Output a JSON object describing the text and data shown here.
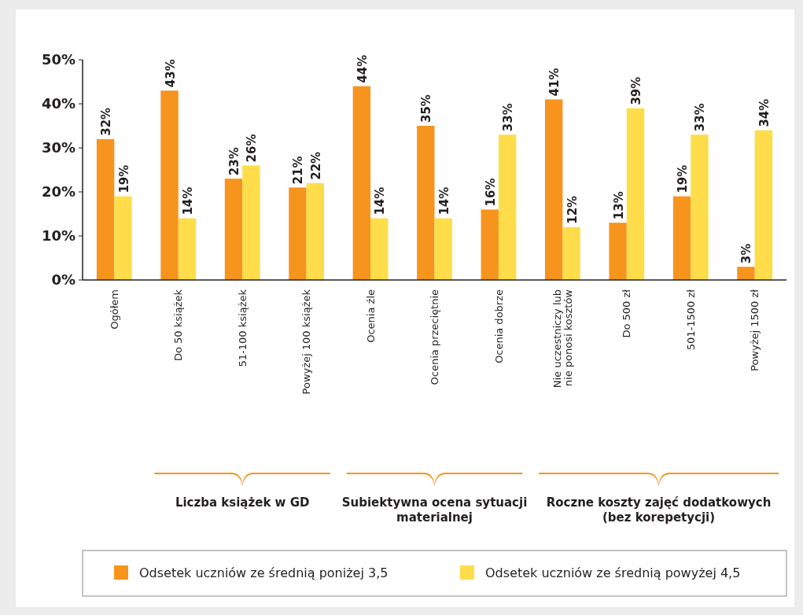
{
  "chart_data": {
    "type": "bar",
    "categories": [
      "Ogółem",
      "Do 50 książek",
      "51-100 książek",
      "Powyżej 100 książek",
      "Ocenia źle",
      "Ocenia przeciętnie",
      "Ocenia dobrze",
      "Nie uczestniczy lub nie ponosi kosztów",
      "Do 500 zł",
      "501-1500 zł",
      "Powyżej 1500 zł"
    ],
    "series": [
      {
        "name": "Odsetek uczniów ze średnią poniżej 3,5",
        "color": "#f7941d",
        "values": [
          32,
          43,
          23,
          21,
          44,
          35,
          16,
          41,
          13,
          19,
          3
        ],
        "value_labels": [
          "32%",
          "43%",
          "23%",
          "21%",
          "44%",
          "35%",
          "16%",
          "41%",
          "13%",
          "19%",
          "3%"
        ]
      },
      {
        "name": "Odsetek uczniów ze średnią powyżej 4,5",
        "color": "#ffdd4a",
        "values": [
          19,
          14,
          26,
          22,
          14,
          14,
          33,
          12,
          39,
          33,
          34
        ],
        "value_labels": [
          "19%",
          "14%",
          "26%",
          "22%",
          "14%",
          "14%",
          "33%",
          "12%",
          "39%",
          "33%",
          "34%"
        ]
      }
    ],
    "ylim": [
      0,
      50
    ],
    "yticks": [
      {
        "value": 0,
        "label": "0%"
      },
      {
        "value": 10,
        "label": "10%"
      },
      {
        "value": 20,
        "label": "20%"
      },
      {
        "value": 30,
        "label": "30%"
      },
      {
        "value": 40,
        "label": "40%"
      },
      {
        "value": 50,
        "label": "50%"
      }
    ],
    "annotations": [
      "Liczba książek w GD",
      "Subiektywna ocena sytuacji materialnej",
      "Roczne koszty zajęć dodatkowych (bez korepetycji)"
    ],
    "legend": "bottom",
    "grid": false
  }
}
